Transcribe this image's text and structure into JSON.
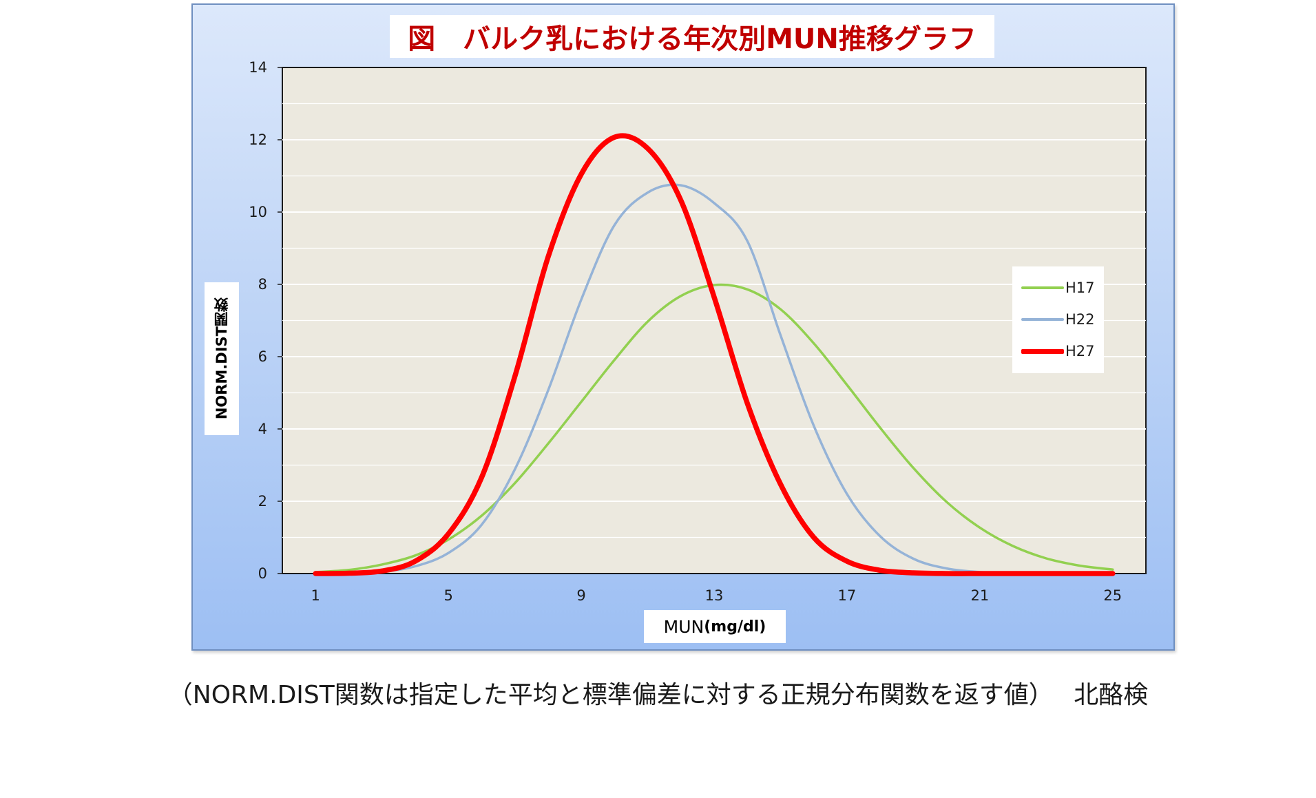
{
  "chart_title": "図　バルク乳における年次別MUN推移グラフ",
  "caption": "（NORM.DIST関数は指定した平均と標準偏差に対する正規分布関数を返す値）　 北酪検",
  "colors": {
    "frame_border": "#6f8fc0",
    "plot_background": "#ece9df",
    "title_text": "#c00000",
    "H17": "#92d050",
    "H22": "#95b3d7",
    "H27": "#ff0000"
  },
  "chart_data": {
    "type": "line",
    "title": "図　バルク乳における年次別MUN推移グラフ",
    "xlabel": "MUN",
    "xlabel_unit": "(mg/dl)",
    "ylabel": "NORM.DIST関数",
    "x_tick_labels": [
      "1",
      "5",
      "9",
      "13",
      "17",
      "21",
      "25"
    ],
    "y_tick_labels": [
      "0",
      "2",
      "4",
      "6",
      "8",
      "10",
      "12",
      "14"
    ],
    "xlim": [
      0,
      26
    ],
    "ylim": [
      0,
      14
    ],
    "grid": true,
    "legend_position": "right",
    "x": [
      1,
      2,
      3,
      4,
      5,
      6,
      7,
      8,
      9,
      10,
      11,
      12,
      13,
      14,
      15,
      16,
      17,
      18,
      19,
      20,
      21,
      22,
      23,
      24,
      25
    ],
    "series": [
      {
        "name": "H17",
        "color": "#92d050",
        "values": [
          0.04,
          0.1,
          0.25,
          0.5,
          0.94,
          1.6,
          2.5,
          3.59,
          4.75,
          5.91,
          6.97,
          7.68,
          7.98,
          7.86,
          7.31,
          6.37,
          5.22,
          4.03,
          2.92,
          1.98,
          1.27,
          0.76,
          0.42,
          0.22,
          0.11
        ]
      },
      {
        "name": "H22",
        "color": "#95b3d7",
        "values": [
          0.0,
          0.01,
          0.05,
          0.2,
          0.57,
          1.35,
          2.88,
          5.06,
          7.58,
          9.64,
          10.54,
          10.74,
          10.25,
          9.2,
          6.59,
          4.09,
          2.2,
          1.03,
          0.41,
          0.14,
          0.04,
          0.01,
          0.0,
          0.0,
          0.0
        ]
      },
      {
        "name": "H27",
        "color": "#ff0000",
        "values": [
          0.0,
          0.01,
          0.07,
          0.34,
          1.1,
          2.66,
          5.45,
          8.75,
          11.05,
          12.07,
          11.76,
          10.32,
          7.65,
          4.71,
          2.47,
          1.0,
          0.34,
          0.09,
          0.02,
          0.0,
          0.0,
          0.0,
          0.0,
          0.0,
          0.0
        ]
      }
    ]
  }
}
